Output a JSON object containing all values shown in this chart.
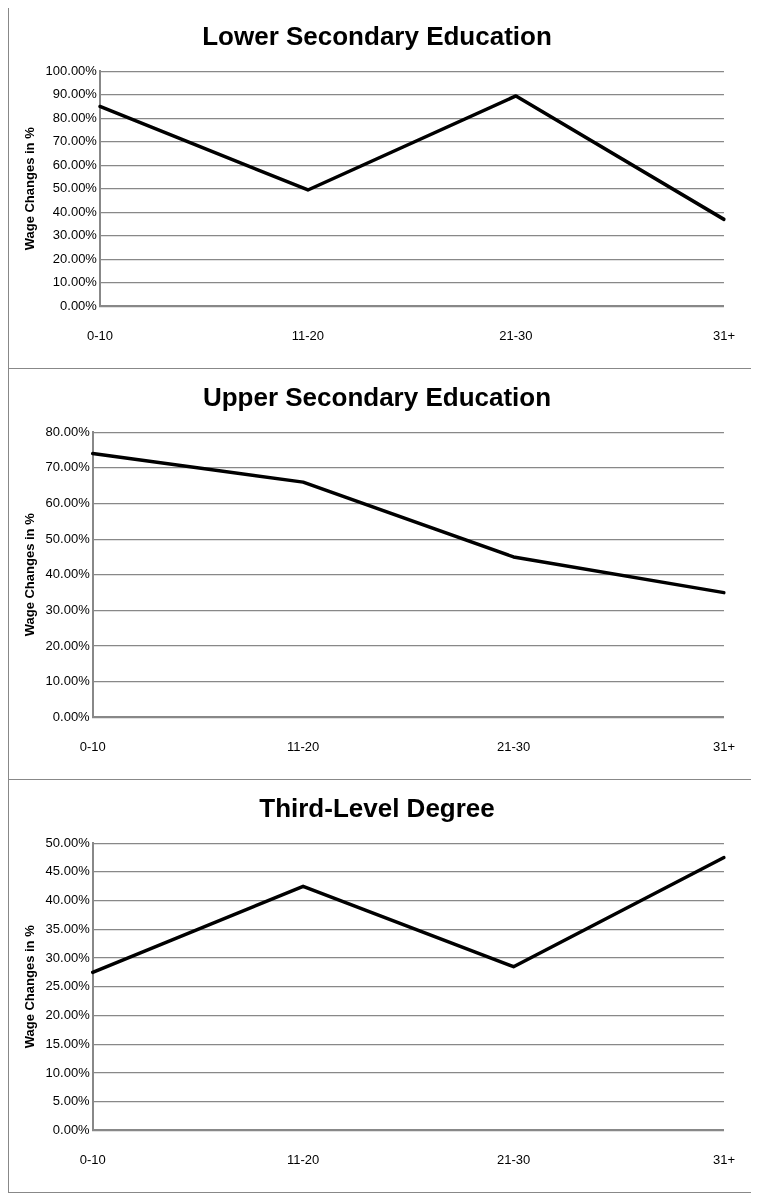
{
  "chart_data": [
    {
      "type": "line",
      "title": "Lower Secondary Education",
      "ylabel": "Wage Changes in %",
      "categories": [
        "0-10",
        "11-20",
        "21-30",
        "31+"
      ],
      "series": [
        {
          "color": "#000000",
          "values": [
            85,
            49.5,
            89.5,
            37
          ]
        }
      ],
      "ylim": [
        0,
        100
      ],
      "yticks": [
        {
          "value": 0,
          "label": "0.00%"
        },
        {
          "value": 10,
          "label": "10.00%"
        },
        {
          "value": 20,
          "label": "20.00%"
        },
        {
          "value": 30,
          "label": "30.00%"
        },
        {
          "value": 40,
          "label": "40.00%"
        },
        {
          "value": 50,
          "label": "50.00%"
        },
        {
          "value": 60,
          "label": "60.00%"
        },
        {
          "value": 70,
          "label": "70.00%"
        },
        {
          "value": 80,
          "label": "80.00%"
        },
        {
          "value": 90,
          "label": "90.00%"
        },
        {
          "value": 100,
          "label": "100.00%"
        }
      ],
      "grid": "y",
      "legend": false,
      "marker": "none",
      "line_style": "solid"
    },
    {
      "type": "line",
      "title": "Upper Secondary Education",
      "ylabel": "Wage Changes in %",
      "categories": [
        "0-10",
        "11-20",
        "21-30",
        "31+"
      ],
      "series": [
        {
          "color": "#000000",
          "values": [
            74,
            66,
            45,
            35
          ]
        }
      ],
      "ylim": [
        0,
        80
      ],
      "yticks": [
        {
          "value": 0,
          "label": "0.00%"
        },
        {
          "value": 10,
          "label": "10.00%"
        },
        {
          "value": 20,
          "label": "20.00%"
        },
        {
          "value": 30,
          "label": "30.00%"
        },
        {
          "value": 40,
          "label": "40.00%"
        },
        {
          "value": 50,
          "label": "50.00%"
        },
        {
          "value": 60,
          "label": "60.00%"
        },
        {
          "value": 70,
          "label": "70.00%"
        },
        {
          "value": 80,
          "label": "80.00%"
        }
      ],
      "grid": "y",
      "legend": false,
      "marker": "none",
      "line_style": "solid"
    },
    {
      "type": "line",
      "title": "Third-Level Degree",
      "ylabel": "Wage Changes in %",
      "categories": [
        "0-10",
        "11-20",
        "21-30",
        "31+"
      ],
      "series": [
        {
          "color": "#000000",
          "values": [
            27.5,
            42.5,
            28.5,
            47.5
          ]
        }
      ],
      "ylim": [
        0,
        50
      ],
      "yticks": [
        {
          "value": 0,
          "label": "0.00%"
        },
        {
          "value": 5,
          "label": "5.00%"
        },
        {
          "value": 10,
          "label": "10.00%"
        },
        {
          "value": 15,
          "label": "15.00%"
        },
        {
          "value": 20,
          "label": "20.00%"
        },
        {
          "value": 25,
          "label": "25.00%"
        },
        {
          "value": 30,
          "label": "30.00%"
        },
        {
          "value": 35,
          "label": "35.00%"
        },
        {
          "value": 40,
          "label": "40.00%"
        },
        {
          "value": 45,
          "label": "45.00%"
        },
        {
          "value": 50,
          "label": "50.00%"
        }
      ],
      "grid": "y",
      "legend": false,
      "marker": "none",
      "line_style": "solid"
    }
  ]
}
